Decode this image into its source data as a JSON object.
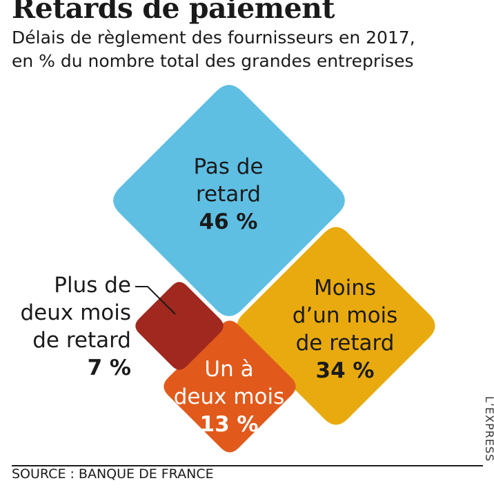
{
  "header": {
    "title": "Retards de paiement",
    "subtitle_line1": "Délais de règlement des fournisseurs en 2017,",
    "subtitle_line2": "en % du nombre total des grandes entreprises"
  },
  "colors": {
    "pas_de_retard": "#5ebfe3",
    "moins_un_mois": "#e8aa0e",
    "un_a_deux_mois": "#e15a1c",
    "plus_deux_mois": "#a0281e"
  },
  "chart_data": {
    "type": "diamond-area",
    "unit": "%",
    "categories": [
      "Pas de retard",
      "Moins d'un mois de retard",
      "Un à deux mois",
      "Plus de deux mois de retard"
    ],
    "values": [
      46,
      34,
      13,
      7
    ]
  },
  "labels": {
    "pas_de_retard": {
      "l1": "Pas de",
      "l2": "retard",
      "v": "46 %"
    },
    "moins_un_mois": {
      "l1": "Moins",
      "l2": "d’un mois",
      "l3": "de retard",
      "v": "34 %"
    },
    "un_a_deux": {
      "l1": "Un à",
      "l2": "deux mois",
      "v": "13 %"
    },
    "plus_deux": {
      "l1": "Plus de",
      "l2": "deux mois",
      "l3": "de retard",
      "v": "7 %"
    }
  },
  "footer": {
    "source": "SOURCE : BANQUE DE FRANCE",
    "brand": "L’EXPRESS"
  }
}
